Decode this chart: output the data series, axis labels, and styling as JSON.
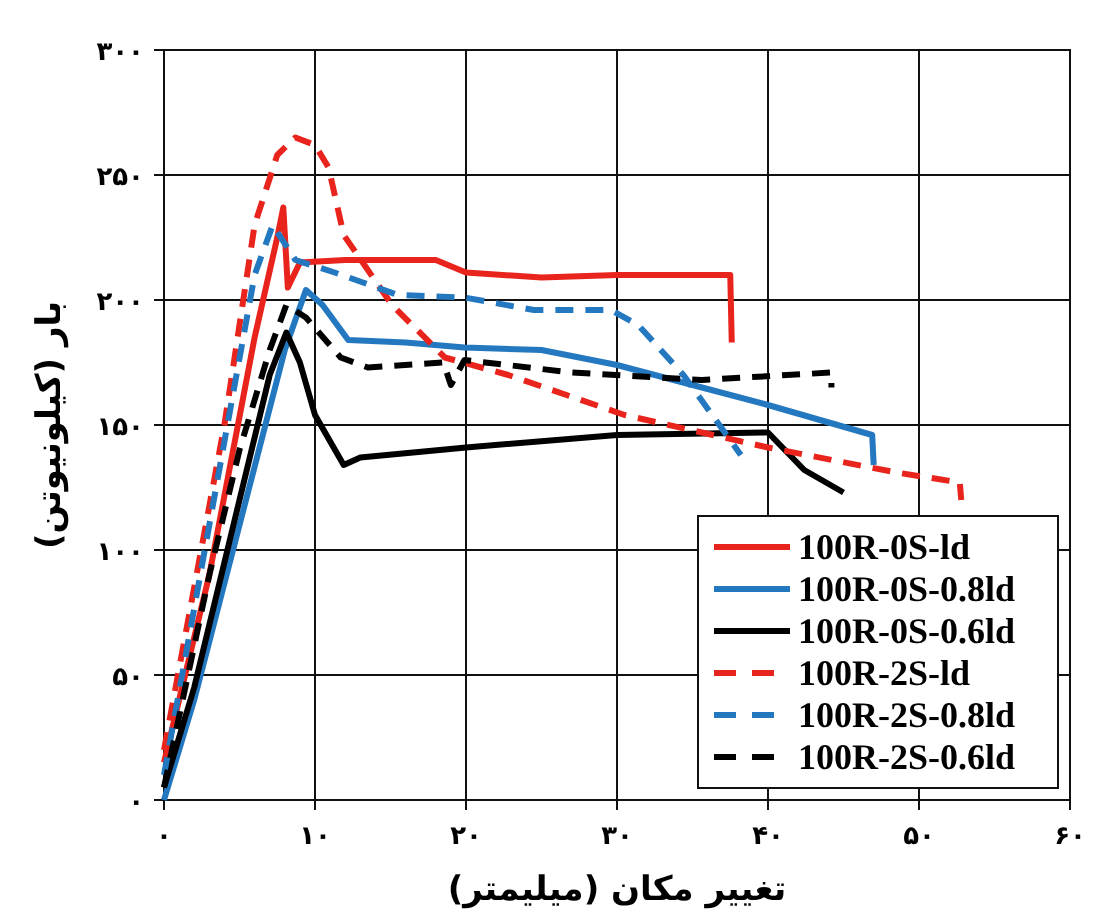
{
  "chart_data": {
    "type": "line",
    "xlabel": "تغییر مکان (میلیمتر)",
    "ylabel": "بار (کیلونیوتن)",
    "xlim": [
      0,
      60
    ],
    "ylim": [
      0,
      300
    ],
    "xticks": [
      {
        "value": 0,
        "label": "۰"
      },
      {
        "value": 10,
        "label": "۱۰"
      },
      {
        "value": 20,
        "label": "۲۰"
      },
      {
        "value": 30,
        "label": "۳۰"
      },
      {
        "value": 40,
        "label": "۴۰"
      },
      {
        "value": 50,
        "label": "۵۰"
      },
      {
        "value": 60,
        "label": "۶۰"
      }
    ],
    "yticks": [
      {
        "value": 0,
        "label": "۰"
      },
      {
        "value": 50,
        "label": "۵۰"
      },
      {
        "value": 100,
        "label": "۱۰۰"
      },
      {
        "value": 150,
        "label": "۱۵۰"
      },
      {
        "value": 200,
        "label": "۲۰۰"
      },
      {
        "value": 250,
        "label": "۲۵۰"
      },
      {
        "value": 300,
        "label": "۳۰۰"
      }
    ],
    "grid": true,
    "legend": "bottom right",
    "series": [
      {
        "name": "100R-0S-ld",
        "color": "#e8241c",
        "line_style": "solid",
        "x": [
          0,
          3,
          6,
          7.5,
          7.9,
          8.2,
          9,
          12,
          18,
          20,
          25,
          30,
          37.5,
          37.6
        ],
        "values": [
          15,
          90,
          185,
          225,
          237,
          205,
          215,
          216,
          216,
          211,
          209,
          210,
          210,
          183
        ]
      },
      {
        "name": "100R-0S-0.8ld",
        "color": "#2478c0",
        "line_style": "solid",
        "x": [
          0,
          2,
          5,
          8,
          9.4,
          10.5,
          12.2,
          16,
          19.9,
          25,
          30,
          35,
          40,
          46.9,
          47
        ],
        "values": [
          0,
          40,
          110,
          180,
          204,
          198,
          184,
          183,
          181,
          180,
          174,
          166,
          158,
          146,
          134
        ]
      },
      {
        "name": "100R-0S-0.6ld",
        "color": "#000000",
        "line_style": "solid",
        "x": [
          0,
          2,
          5,
          7,
          8.1,
          9,
          10,
          11.9,
          13,
          20,
          30,
          40,
          42.4,
          45
        ],
        "values": [
          5,
          45,
          120,
          170,
          187,
          175,
          154,
          134,
          137,
          141,
          146,
          147,
          132,
          123
        ]
      },
      {
        "name": "100R-2S-ld",
        "color": "#e8241c",
        "line_style": "dashed",
        "x": [
          0,
          4,
          6,
          7.5,
          8.7,
          10,
          10.9,
          11.9,
          15.1,
          18.6,
          22.8,
          30.5,
          40,
          48.5,
          52.7,
          52.8
        ],
        "values": [
          20,
          150,
          230,
          258,
          265,
          262,
          253,
          226,
          198,
          177,
          170,
          154,
          141,
          131,
          127,
          120
        ]
      },
      {
        "name": "100R-2S-0.8ld",
        "color": "#2478c0",
        "line_style": "dashed",
        "x": [
          0,
          3,
          6,
          7.2,
          8.7,
          11.3,
          15.5,
          19.9,
          24.5,
          29.6,
          31.4,
          34.4,
          36.9,
          38.2
        ],
        "values": [
          10,
          110,
          210,
          230,
          216,
          211,
          202,
          201,
          196,
          196,
          190,
          170,
          149,
          138
        ]
      },
      {
        "name": "100R-2S-0.6ld",
        "color": "#000000",
        "line_style": "dashed",
        "x": [
          0,
          3,
          5,
          7,
          8.1,
          9.4,
          11.7,
          13.5,
          18.5,
          19,
          19.9,
          27,
          35.6,
          44.2,
          44.2
        ],
        "values": [
          5,
          90,
          140,
          180,
          198,
          193,
          177,
          173,
          175,
          166,
          176,
          171,
          168,
          171,
          165
        ]
      }
    ]
  }
}
